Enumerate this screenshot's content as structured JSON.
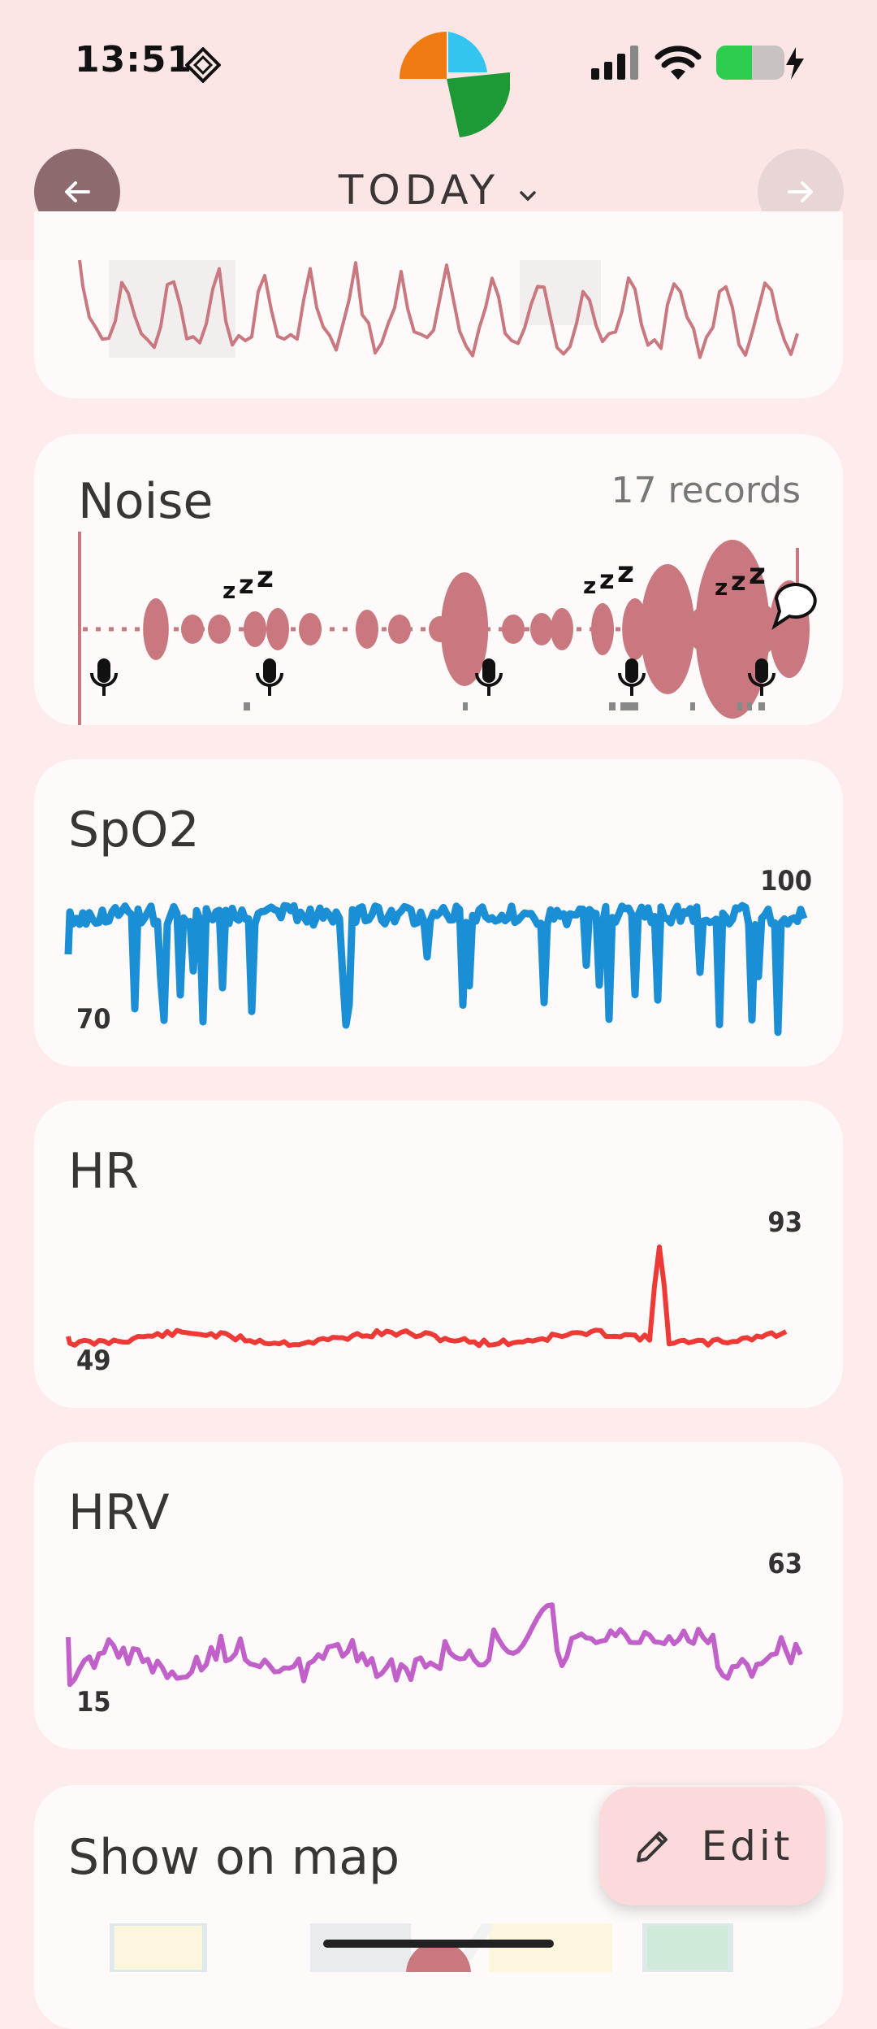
{
  "status_bar": {
    "time": "13:51"
  },
  "header": {
    "title": "TODAY"
  },
  "cards": {
    "noise": {
      "title": "Noise",
      "records": "17 records"
    },
    "spo2": {
      "title": "SpO2",
      "max": "100",
      "min": "70",
      "color": "#1a8fd6"
    },
    "hr": {
      "title": "HR",
      "max": "93",
      "min": "49",
      "color": "#ee3a36"
    },
    "hrv": {
      "title": "HRV",
      "max": "63",
      "min": "15",
      "color": "#c060c8"
    },
    "map": {
      "title": "Show on map"
    }
  },
  "fab": {
    "label": "Edit"
  },
  "colors": {
    "accent_noise": "#c9787f",
    "background": "#fdeceb",
    "card": "#fffafa"
  }
}
